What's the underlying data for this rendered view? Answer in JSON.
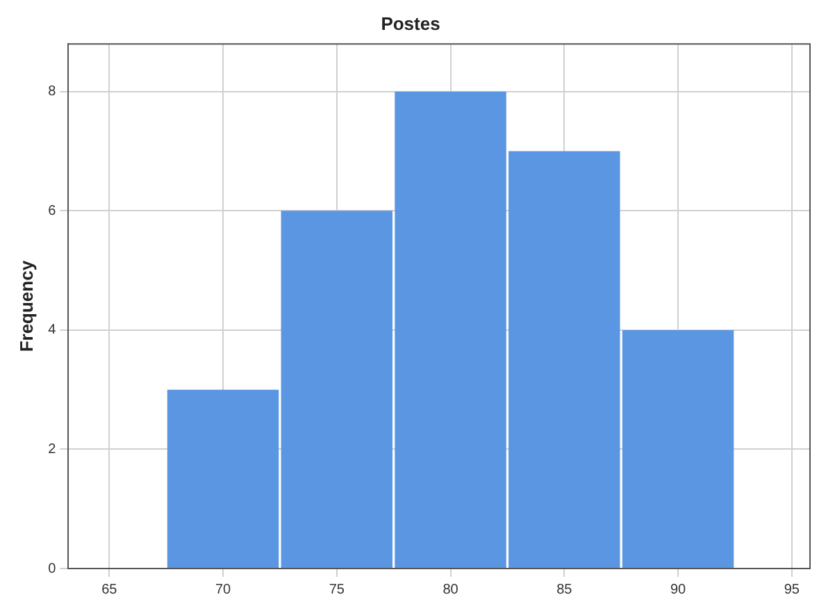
{
  "chart_data": {
    "type": "histogram",
    "title": "Postes",
    "ylabel": "Frequency",
    "bins": [
      67.5,
      72.5,
      77.5,
      82.5,
      87.5,
      92.5
    ],
    "values": [
      3,
      6,
      8,
      7,
      4
    ],
    "color": "#5b96e3",
    "xlim": [
      63.2,
      95.8
    ],
    "xticks": [
      65,
      70,
      75,
      80,
      85,
      90,
      95
    ],
    "ylim": [
      0,
      8.8
    ],
    "yticks": [
      0,
      2,
      4,
      6,
      8
    ],
    "grid": true
  }
}
